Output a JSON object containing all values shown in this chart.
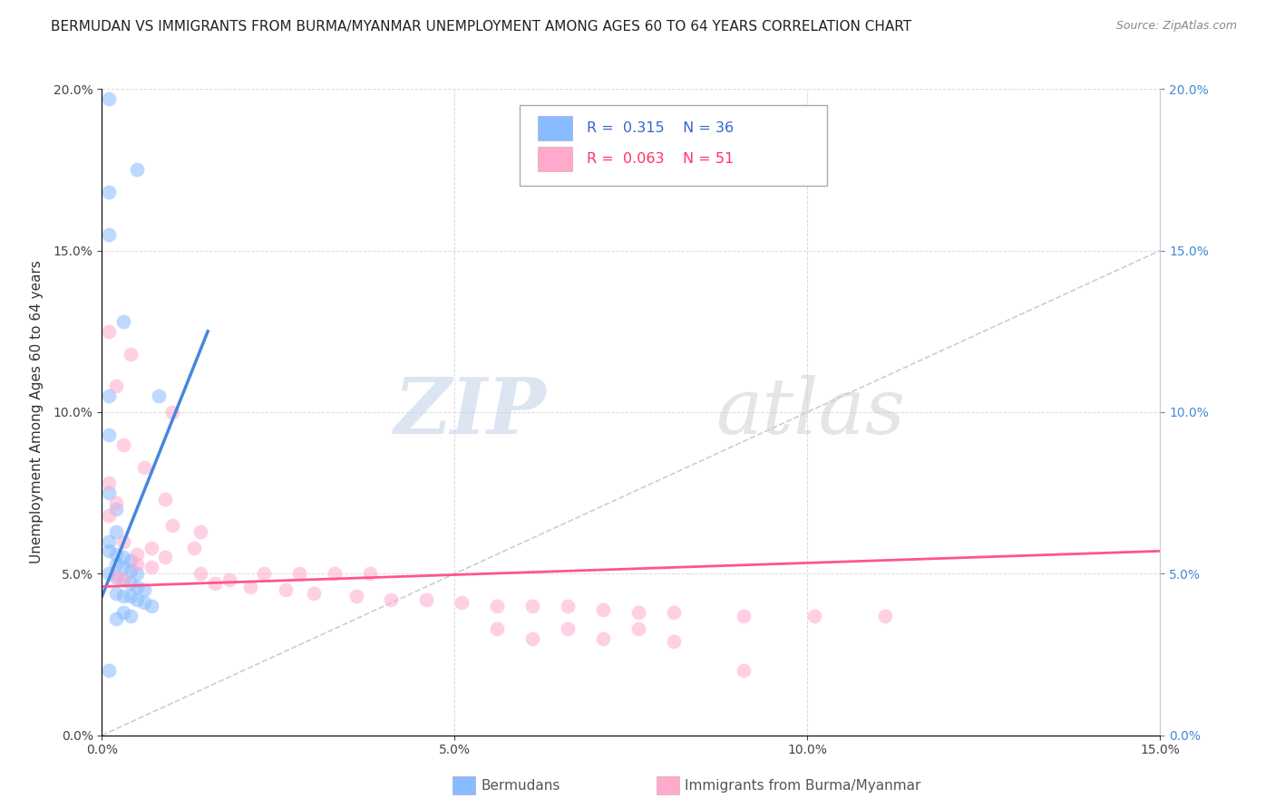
{
  "title": "BERMUDAN VS IMMIGRANTS FROM BURMA/MYANMAR UNEMPLOYMENT AMONG AGES 60 TO 64 YEARS CORRELATION CHART",
  "source": "Source: ZipAtlas.com",
  "ylabel": "Unemployment Among Ages 60 to 64 years",
  "xmin": 0.0,
  "xmax": 0.15,
  "ymin": 0.0,
  "ymax": 0.2,
  "xticks": [
    0.0,
    0.05,
    0.1,
    0.15
  ],
  "yticks": [
    0.0,
    0.05,
    0.1,
    0.15,
    0.2
  ],
  "watermark_zip": "ZIP",
  "watermark_atlas": "atlas",
  "blue_scatter": [
    [
      0.001,
      0.197
    ],
    [
      0.001,
      0.168
    ],
    [
      0.005,
      0.175
    ],
    [
      0.001,
      0.155
    ],
    [
      0.003,
      0.128
    ],
    [
      0.001,
      0.105
    ],
    [
      0.001,
      0.093
    ],
    [
      0.008,
      0.105
    ],
    [
      0.001,
      0.075
    ],
    [
      0.002,
      0.07
    ],
    [
      0.002,
      0.063
    ],
    [
      0.001,
      0.06
    ],
    [
      0.001,
      0.057
    ],
    [
      0.002,
      0.056
    ],
    [
      0.003,
      0.055
    ],
    [
      0.004,
      0.054
    ],
    [
      0.002,
      0.053
    ],
    [
      0.003,
      0.052
    ],
    [
      0.004,
      0.051
    ],
    [
      0.005,
      0.05
    ],
    [
      0.001,
      0.05
    ],
    [
      0.002,
      0.049
    ],
    [
      0.003,
      0.048
    ],
    [
      0.004,
      0.047
    ],
    [
      0.005,
      0.046
    ],
    [
      0.006,
      0.045
    ],
    [
      0.002,
      0.044
    ],
    [
      0.003,
      0.043
    ],
    [
      0.004,
      0.043
    ],
    [
      0.005,
      0.042
    ],
    [
      0.006,
      0.041
    ],
    [
      0.007,
      0.04
    ],
    [
      0.003,
      0.038
    ],
    [
      0.004,
      0.037
    ],
    [
      0.002,
      0.036
    ],
    [
      0.001,
      0.02
    ]
  ],
  "pink_scatter": [
    [
      0.001,
      0.125
    ],
    [
      0.004,
      0.118
    ],
    [
      0.002,
      0.108
    ],
    [
      0.01,
      0.1
    ],
    [
      0.003,
      0.09
    ],
    [
      0.006,
      0.083
    ],
    [
      0.001,
      0.078
    ],
    [
      0.009,
      0.073
    ],
    [
      0.002,
      0.072
    ],
    [
      0.001,
      0.068
    ],
    [
      0.01,
      0.065
    ],
    [
      0.014,
      0.063
    ],
    [
      0.003,
      0.06
    ],
    [
      0.007,
      0.058
    ],
    [
      0.013,
      0.058
    ],
    [
      0.005,
      0.056
    ],
    [
      0.009,
      0.055
    ],
    [
      0.005,
      0.053
    ],
    [
      0.007,
      0.052
    ],
    [
      0.014,
      0.05
    ],
    [
      0.018,
      0.048
    ],
    [
      0.023,
      0.05
    ],
    [
      0.028,
      0.05
    ],
    [
      0.033,
      0.05
    ],
    [
      0.038,
      0.05
    ],
    [
      0.002,
      0.049
    ],
    [
      0.003,
      0.048
    ],
    [
      0.016,
      0.047
    ],
    [
      0.021,
      0.046
    ],
    [
      0.026,
      0.045
    ],
    [
      0.03,
      0.044
    ],
    [
      0.036,
      0.043
    ],
    [
      0.041,
      0.042
    ],
    [
      0.046,
      0.042
    ],
    [
      0.051,
      0.041
    ],
    [
      0.056,
      0.04
    ],
    [
      0.061,
      0.04
    ],
    [
      0.066,
      0.04
    ],
    [
      0.071,
      0.039
    ],
    [
      0.076,
      0.038
    ],
    [
      0.081,
      0.038
    ],
    [
      0.091,
      0.037
    ],
    [
      0.101,
      0.037
    ],
    [
      0.111,
      0.037
    ],
    [
      0.056,
      0.033
    ],
    [
      0.066,
      0.033
    ],
    [
      0.076,
      0.033
    ],
    [
      0.061,
      0.03
    ],
    [
      0.071,
      0.03
    ],
    [
      0.081,
      0.029
    ],
    [
      0.091,
      0.02
    ]
  ],
  "blue_line_x": [
    0.0,
    0.015
  ],
  "blue_line_y": [
    0.043,
    0.125
  ],
  "pink_line_x": [
    0.0,
    0.15
  ],
  "pink_line_y": [
    0.046,
    0.057
  ],
  "diag_line_x": [
    0.0,
    0.15
  ],
  "diag_line_y": [
    0.0,
    0.15
  ],
  "background_color": "#ffffff",
  "grid_color": "#cccccc",
  "blue_color": "#88bbff",
  "pink_color": "#ffaacc",
  "blue_line_color": "#4488dd",
  "pink_line_color": "#ff5588",
  "diag_line_color": "#aabbcc",
  "legend_blue_text_color": "#3366cc",
  "legend_pink_text_color": "#ff3366"
}
